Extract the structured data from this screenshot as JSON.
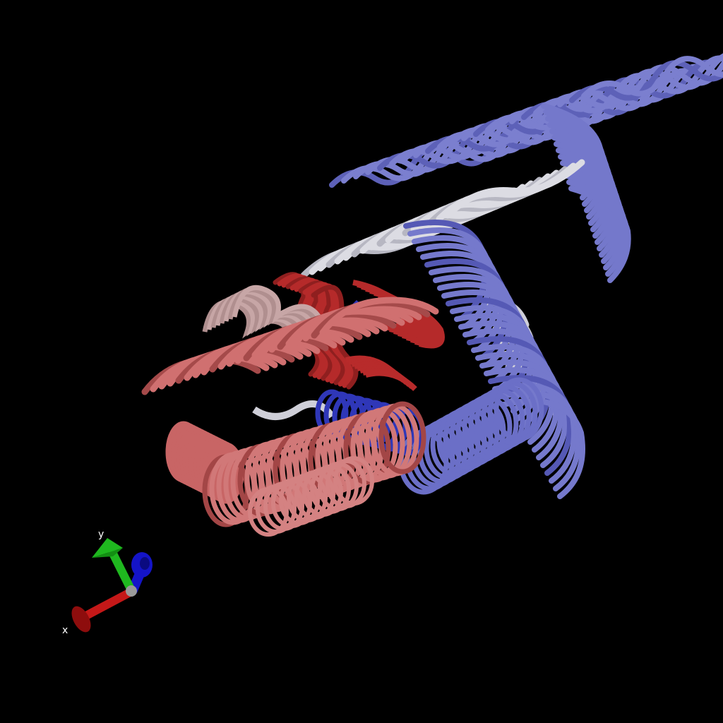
{
  "scene": {
    "background": "#000000",
    "subject": "protein-structure-cartoon"
  },
  "palette": {
    "red_dark": "#b52a2a",
    "red_light": "#cf6b6b",
    "red_pale": "#c9a3a3",
    "white": "#d9d9df",
    "blue_light": "#7276c8",
    "blue_dark": "#2f37b8"
  },
  "axes": {
    "x_label": "x",
    "y_label": "y",
    "x_color": "#c41818",
    "y_color": "#1fb81f",
    "z_color": "#1414c8"
  }
}
